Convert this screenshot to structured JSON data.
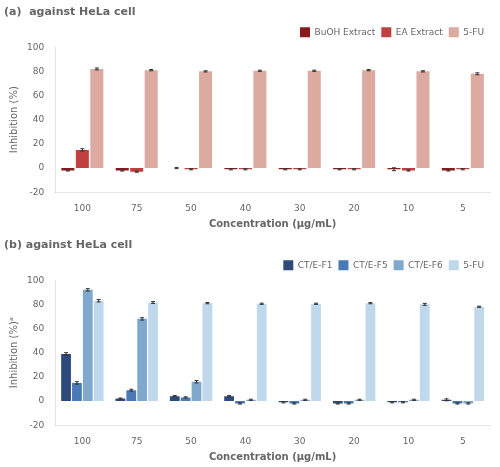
{
  "chart_data": [
    {
      "type": "bar",
      "title": "(a)  against HeLa cell",
      "xlabel": "Concentration (μg/mL)",
      "ylabel": "Inhibition (%)",
      "categories": [
        "100",
        "75",
        "50",
        "40",
        "30",
        "20",
        "10",
        "5"
      ],
      "series": [
        {
          "name": "BuOH Extract",
          "color": "#8B1A1A",
          "values": [
            -2,
            -2,
            0,
            -1,
            -1,
            -1,
            -1,
            -2
          ],
          "errors": [
            0.5,
            0.5,
            0.5,
            0.5,
            0.5,
            0.5,
            1.2,
            0.5
          ]
        },
        {
          "name": "EA Extract",
          "color": "#C04040",
          "values": [
            15,
            -3,
            -1,
            -1,
            -1,
            -1,
            -2,
            -1
          ],
          "errors": [
            1.0,
            0.5,
            0.5,
            0.5,
            0.5,
            0.5,
            0.5,
            0.5
          ]
        },
        {
          "name": "5-FU",
          "color": "#DBAAA0",
          "values": [
            82,
            81,
            80,
            80.5,
            80.5,
            81,
            80,
            78
          ],
          "errors": [
            0.8,
            0.5,
            0.5,
            0.5,
            0.5,
            0.5,
            0.5,
            0.8
          ]
        }
      ],
      "ylim": [
        -20,
        100
      ],
      "yticks": [
        -20,
        0,
        20,
        40,
        60,
        80,
        100
      ],
      "grid": false,
      "legend": "top"
    },
    {
      "type": "bar",
      "title": "(b) against HeLa cell",
      "xlabel": "Concentration (μg/mL)",
      "ylabel": "Inhibition (%)ᵃ",
      "categories": [
        "100",
        "75",
        "50",
        "40",
        "30",
        "20",
        "10",
        "5"
      ],
      "series": [
        {
          "name": "CT/E-F1",
          "color": "#2E4A7A",
          "values": [
            39,
            2,
            4,
            4,
            -1,
            -2,
            -1,
            1
          ],
          "errors": [
            1.0,
            0.5,
            0.5,
            0.5,
            0.5,
            0.5,
            0.5,
            0.8
          ]
        },
        {
          "name": "CT/E-F5",
          "color": "#4A7AB5",
          "values": [
            15,
            9,
            3,
            -2,
            -2,
            -2,
            -1,
            -2
          ],
          "errors": [
            1.0,
            0.8,
            0.5,
            0.5,
            0.5,
            0.5,
            0.5,
            0.5
          ]
        },
        {
          "name": "CT/E-F6",
          "color": "#7FA8CC",
          "values": [
            92,
            68,
            16,
            1,
            1,
            1,
            1,
            -2
          ],
          "errors": [
            1.0,
            1.0,
            1.0,
            0.5,
            0.5,
            0.5,
            0.5,
            0.5
          ]
        },
        {
          "name": "5-FU",
          "color": "#C0D8EC",
          "values": [
            83,
            81.5,
            81,
            80.5,
            80.5,
            81,
            80,
            78
          ],
          "errors": [
            1.0,
            0.8,
            0.5,
            0.5,
            0.5,
            0.5,
            0.8,
            0.5
          ]
        }
      ],
      "ylim": [
        -20,
        100
      ],
      "yticks": [
        -20,
        0,
        20,
        40,
        60,
        80,
        100
      ],
      "grid": false,
      "legend": "top"
    }
  ]
}
